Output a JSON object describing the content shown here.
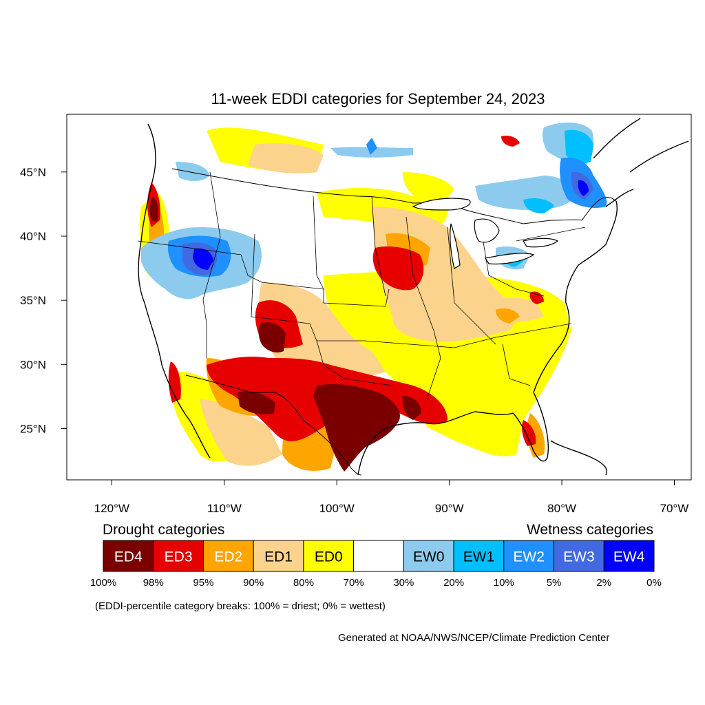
{
  "map": {
    "title": "11-week EDDI categories for September 24, 2023",
    "lon_ticks": [
      "120°W",
      "110°W",
      "100°W",
      "90°W",
      "80°W",
      "70°W"
    ],
    "lat_ticks": [
      "45°N",
      "40°N",
      "35°N",
      "30°N",
      "25°N"
    ],
    "lon_values": [
      -120,
      -110,
      -100,
      -90,
      -80,
      -70
    ],
    "lat_values": [
      45,
      40,
      35,
      30,
      25
    ],
    "lon_range": [
      -124,
      -68.5
    ],
    "lat_range": [
      21,
      49.5
    ]
  },
  "legend": {
    "drought_heading": "Drought categories",
    "wetness_heading": "Wetness categories",
    "categories": [
      {
        "label": "ED4",
        "color": "#7a0000",
        "text_color": "#ffffff"
      },
      {
        "label": "ED3",
        "color": "#e60000",
        "text_color": "#ffffff"
      },
      {
        "label": "ED2",
        "color": "#ffa500",
        "text_color": "#ffffff"
      },
      {
        "label": "ED1",
        "color": "#fcd38c",
        "text_color": "#000000"
      },
      {
        "label": "ED0",
        "color": "#ffff00",
        "text_color": "#000000"
      },
      {
        "label": "",
        "color": "#ffffff",
        "text_color": "#000000"
      },
      {
        "label": "EW0",
        "color": "#8ccbee",
        "text_color": "#000000"
      },
      {
        "label": "EW1",
        "color": "#00bfff",
        "text_color": "#000000"
      },
      {
        "label": "EW2",
        "color": "#1e90ff",
        "text_color": "#ffffff"
      },
      {
        "label": "EW3",
        "color": "#4169e1",
        "text_color": "#ffffff"
      },
      {
        "label": "EW4",
        "color": "#0000ff",
        "text_color": "#ffffff"
      }
    ],
    "breaks": [
      "100%",
      "98%",
      "95%",
      "90%",
      "80%",
      "70%",
      "30%",
      "20%",
      "10%",
      "5%",
      "2%",
      "0%"
    ]
  },
  "note": "(EDDI-percentile category breaks: 100% = driest; 0% = wettest)",
  "credit": "Generated at NOAA/NWS/NCEP/Climate Prediction Center"
}
